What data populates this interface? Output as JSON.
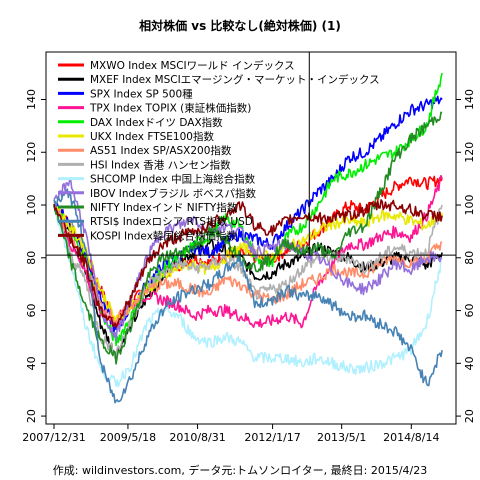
{
  "chart_data": {
    "type": "line",
    "title": "相対株価 vs 比較なし(絶対株価) (1)",
    "credit": "作成: wildinvestors.com, データ元:トムソンロイター, 最終日: 2015/4/23",
    "x_tick_labels": [
      "2007/12/31",
      "2009/5/18",
      "2010/8/31",
      "2012/1/17",
      "2013/5/1",
      "2014/8/14"
    ],
    "x_tick_index": [
      0,
      1.37,
      2.66,
      4.05,
      5.33,
      6.62
    ],
    "y_ticks": [
      20,
      40,
      60,
      80,
      100,
      120,
      140
    ],
    "ylim": [
      17,
      158
    ],
    "xlim": [
      0,
      7.3
    ],
    "reference_line_y": 81,
    "reference_line_x": 4.73,
    "grid": false,
    "legend_position": "top-left",
    "series": [
      {
        "name": "MXWO Index MSCIワールド インデックス",
        "color": "#ff0000",
        "values": [
          100,
          93,
          82,
          68,
          56,
          63,
          69,
          74,
          77,
          80,
          78,
          81,
          82,
          80,
          79,
          83,
          85,
          90,
          95,
          100,
          98,
          103,
          107,
          110,
          108,
          110
        ]
      },
      {
        "name": "MXEF Index MSCIエマージング・マーケット・インデックス",
        "color": "#000000",
        "values": [
          100,
          90,
          75,
          55,
          43,
          55,
          65,
          73,
          79,
          82,
          85,
          83,
          80,
          73,
          74,
          78,
          80,
          84,
          82,
          80,
          76,
          78,
          80,
          80,
          77,
          82
        ]
      },
      {
        "name": "SPX Index SP 500種",
        "color": "#0000ff",
        "values": [
          100,
          93,
          82,
          65,
          52,
          62,
          70,
          77,
          80,
          84,
          82,
          86,
          89,
          87,
          85,
          92,
          98,
          105,
          110,
          118,
          120,
          125,
          131,
          136,
          138,
          140
        ]
      },
      {
        "name": "TPX Index TOPIX (東証株価指数)",
        "color": "#ff1493",
        "values": [
          100,
          86,
          74,
          60,
          55,
          62,
          66,
          64,
          62,
          58,
          60,
          60,
          58,
          55,
          56,
          58,
          55,
          70,
          78,
          85,
          85,
          88,
          90,
          88,
          96,
          110
        ]
      },
      {
        "name": "DAX Indexドイツ DAX指数",
        "color": "#00ee00",
        "values": [
          100,
          90,
          80,
          60,
          48,
          58,
          68,
          75,
          80,
          85,
          88,
          95,
          92,
          80,
          78,
          88,
          92,
          100,
          110,
          112,
          115,
          118,
          120,
          125,
          130,
          150
        ]
      },
      {
        "name": "UKX Index FTSE100指数",
        "color": "#e8e800",
        "values": [
          100,
          92,
          84,
          68,
          56,
          62,
          68,
          72,
          76,
          78,
          75,
          80,
          84,
          82,
          80,
          84,
          86,
          90,
          93,
          94,
          93,
          96,
          96,
          94,
          92,
          97
        ]
      },
      {
        "name": "AS51 Index SP/ASX200指数",
        "color": "#ff8c69",
        "values": [
          100,
          88,
          78,
          62,
          56,
          62,
          68,
          70,
          70,
          68,
          66,
          72,
          70,
          66,
          64,
          66,
          70,
          72,
          76,
          74,
          74,
          78,
          80,
          78,
          80,
          86
        ]
      },
      {
        "name": "HSI Index 香港 ハンセン指数",
        "color": "#b0b0b0",
        "values": [
          100,
          82,
          72,
          50,
          44,
          56,
          70,
          74,
          78,
          76,
          77,
          80,
          76,
          66,
          68,
          70,
          76,
          80,
          80,
          80,
          76,
          80,
          84,
          82,
          82,
          100
        ]
      },
      {
        "name": "SHCOMP Index 中国上海総合指数",
        "color": "#b0f0ff",
        "values": [
          100,
          80,
          55,
          38,
          32,
          40,
          55,
          60,
          58,
          50,
          48,
          50,
          48,
          42,
          42,
          42,
          40,
          42,
          40,
          38,
          38,
          40,
          42,
          45,
          55,
          80
        ]
      },
      {
        "name": "IBOV Indexブラジル ボベスパ指数",
        "color": "#9370db",
        "values": [
          100,
          110,
          90,
          60,
          50,
          65,
          80,
          90,
          92,
          95,
          90,
          92,
          90,
          82,
          84,
          85,
          82,
          80,
          75,
          70,
          68,
          72,
          78,
          75,
          80,
          80
        ]
      },
      {
        "name": "NIFTY Indexインド NIFTY指数",
        "color": "#228b22",
        "values": [
          100,
          80,
          62,
          48,
          42,
          55,
          72,
          80,
          82,
          84,
          90,
          88,
          80,
          76,
          80,
          86,
          82,
          84,
          80,
          90,
          92,
          105,
          118,
          125,
          130,
          135
        ]
      },
      {
        "name": "RTSI$ Indexロシア RTS指数 USD",
        "color": "#4682b4",
        "values": [
          100,
          105,
          85,
          40,
          25,
          35,
          50,
          60,
          65,
          68,
          70,
          75,
          80,
          62,
          64,
          68,
          65,
          66,
          62,
          58,
          58,
          55,
          52,
          45,
          32,
          45
        ]
      },
      {
        "name": "KOSPI Index韓国総合株価指数",
        "color": "#8b0000",
        "values": [
          100,
          88,
          78,
          60,
          55,
          65,
          78,
          85,
          88,
          90,
          92,
          96,
          100,
          92,
          90,
          94,
          96,
          95,
          95,
          96,
          98,
          100,
          100,
          98,
          96,
          96
        ]
      }
    ]
  }
}
